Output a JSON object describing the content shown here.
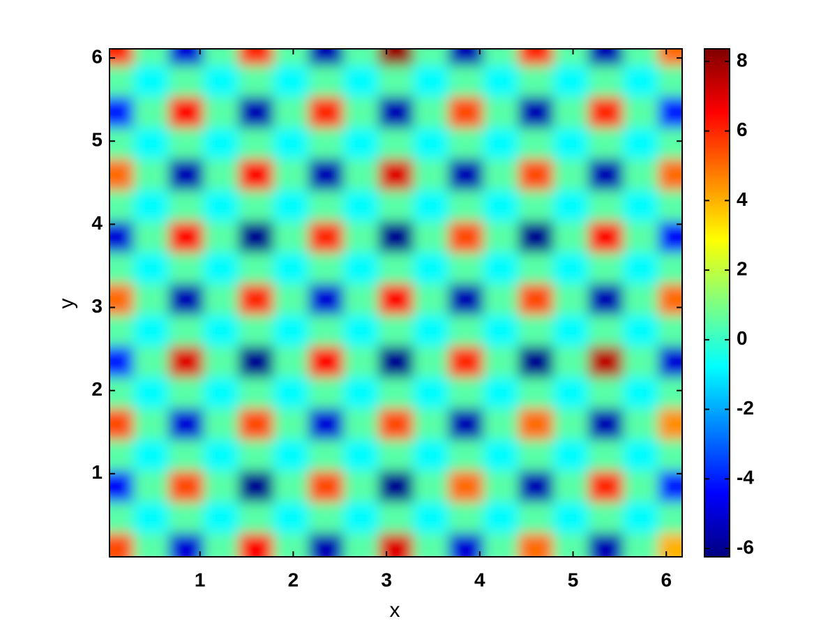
{
  "chart_data": {
    "type": "heatmap",
    "colormap": "jet",
    "xlabel": "x",
    "ylabel": "y",
    "x": [
      0.1,
      0.475,
      0.85,
      1.225,
      1.6,
      1.975,
      2.35,
      2.725,
      3.1,
      3.475,
      3.85,
      4.225,
      4.6,
      4.975,
      5.35,
      5.725,
      6.1
    ],
    "y": [
      0.1,
      0.475,
      0.85,
      1.225,
      1.6,
      1.975,
      2.35,
      2.725,
      3.1,
      3.475,
      3.85,
      4.225,
      4.6,
      4.975,
      5.35,
      5.725,
      6.1
    ],
    "values": [
      [
        5.5,
        0.5,
        -5,
        0.5,
        6.5,
        0.5,
        -5.5,
        0.5,
        7,
        0.5,
        -5,
        0.5,
        5,
        0.5,
        -5.5,
        0.5,
        4
      ],
      [
        0.5,
        -0.8,
        0.5,
        -0.8,
        0.5,
        -0.8,
        0.5,
        -0.8,
        0.5,
        -0.8,
        0.5,
        -0.8,
        0.5,
        -0.8,
        0.5,
        -0.8,
        0.5
      ],
      [
        -4.5,
        0.5,
        5.5,
        0.5,
        -6,
        0.5,
        5.5,
        0.5,
        -6,
        0.5,
        5,
        0.5,
        -5.5,
        0.5,
        6,
        0.5,
        -4
      ],
      [
        0.5,
        -0.8,
        0.5,
        -0.8,
        0.5,
        -0.8,
        0.5,
        -0.8,
        0.5,
        -0.8,
        0.5,
        -0.8,
        0.5,
        -0.8,
        0.5,
        -0.8,
        0.5
      ],
      [
        5.5,
        0.5,
        -5,
        0.5,
        5.5,
        0.5,
        -5,
        0.5,
        5.5,
        0.5,
        -5.5,
        0.5,
        5,
        0.5,
        -5.5,
        0.5,
        4.5
      ],
      [
        0.5,
        -0.8,
        0.5,
        -0.8,
        0.5,
        -0.8,
        0.5,
        -0.8,
        0.5,
        -0.8,
        0.5,
        -0.8,
        0.5,
        -0.8,
        0.5,
        -0.8,
        0.5
      ],
      [
        -4,
        0.5,
        7,
        0.5,
        -6,
        0.5,
        6.5,
        0.5,
        -6,
        0.5,
        6,
        0.5,
        -6,
        0.5,
        7.5,
        0.5,
        -5
      ],
      [
        0.5,
        -0.8,
        0.5,
        -0.8,
        0.5,
        -0.8,
        0.5,
        -0.8,
        0.5,
        -0.8,
        0.5,
        -0.8,
        0.5,
        -0.8,
        0.5,
        -0.8,
        0.5
      ],
      [
        5,
        0.5,
        -5.5,
        0.5,
        6,
        0.5,
        -5,
        0.5,
        6.5,
        0.5,
        -5.5,
        0.5,
        5.5,
        0.5,
        -5.5,
        0.5,
        5
      ],
      [
        0.5,
        -0.8,
        0.5,
        -0.8,
        0.5,
        -0.8,
        0.5,
        -0.8,
        0.5,
        -0.8,
        0.5,
        -0.8,
        0.5,
        -0.8,
        0.5,
        -0.8,
        0.5
      ],
      [
        -5,
        0.5,
        6.5,
        0.5,
        -6,
        0.5,
        6,
        0.5,
        -6,
        0.5,
        5.5,
        0.5,
        -6,
        0.5,
        6.5,
        0.5,
        -4.5
      ],
      [
        0.5,
        -0.8,
        0.5,
        -0.8,
        0.5,
        -0.8,
        0.5,
        -0.8,
        0.5,
        -0.8,
        0.5,
        -0.8,
        0.5,
        -0.8,
        0.5,
        -0.8,
        0.5
      ],
      [
        5,
        0.5,
        -5.5,
        0.5,
        6.5,
        0.5,
        -5.5,
        0.5,
        7,
        0.5,
        -5.5,
        0.5,
        5.5,
        0.5,
        -5.5,
        0.5,
        5
      ],
      [
        0.5,
        -0.8,
        0.5,
        -0.8,
        0.5,
        -0.8,
        0.5,
        -0.8,
        0.5,
        -0.8,
        0.5,
        -0.8,
        0.5,
        -0.8,
        0.5,
        -0.8,
        0.5
      ],
      [
        -4,
        0.5,
        6.5,
        0.5,
        -5.5,
        0.5,
        6,
        0.5,
        -5.5,
        0.5,
        5.5,
        0.5,
        -5.5,
        0.5,
        6,
        0.5,
        -4
      ],
      [
        0.5,
        -0.8,
        0.5,
        -0.8,
        0.5,
        -0.8,
        0.5,
        -0.8,
        0.5,
        -0.8,
        0.5,
        -0.8,
        0.5,
        -0.8,
        0.5,
        -0.8,
        0.5
      ],
      [
        6,
        0.5,
        -5,
        0.5,
        6,
        0.5,
        -5.5,
        0.5,
        8,
        0.5,
        -5.5,
        0.5,
        6,
        0.5,
        -5.5,
        0.5,
        5
      ]
    ],
    "xlim": [
      0.03,
      6.17
    ],
    "ylim": [
      0,
      6.11
    ],
    "xticks": [
      1,
      2,
      3,
      4,
      5,
      6
    ],
    "yticks": [
      1,
      2,
      3,
      4,
      5,
      6
    ],
    "colorbar": {
      "clim": [
        -6.24,
        8.36
      ],
      "ticks": [
        -6,
        -4,
        -2,
        0,
        2,
        4,
        6,
        8
      ]
    }
  }
}
